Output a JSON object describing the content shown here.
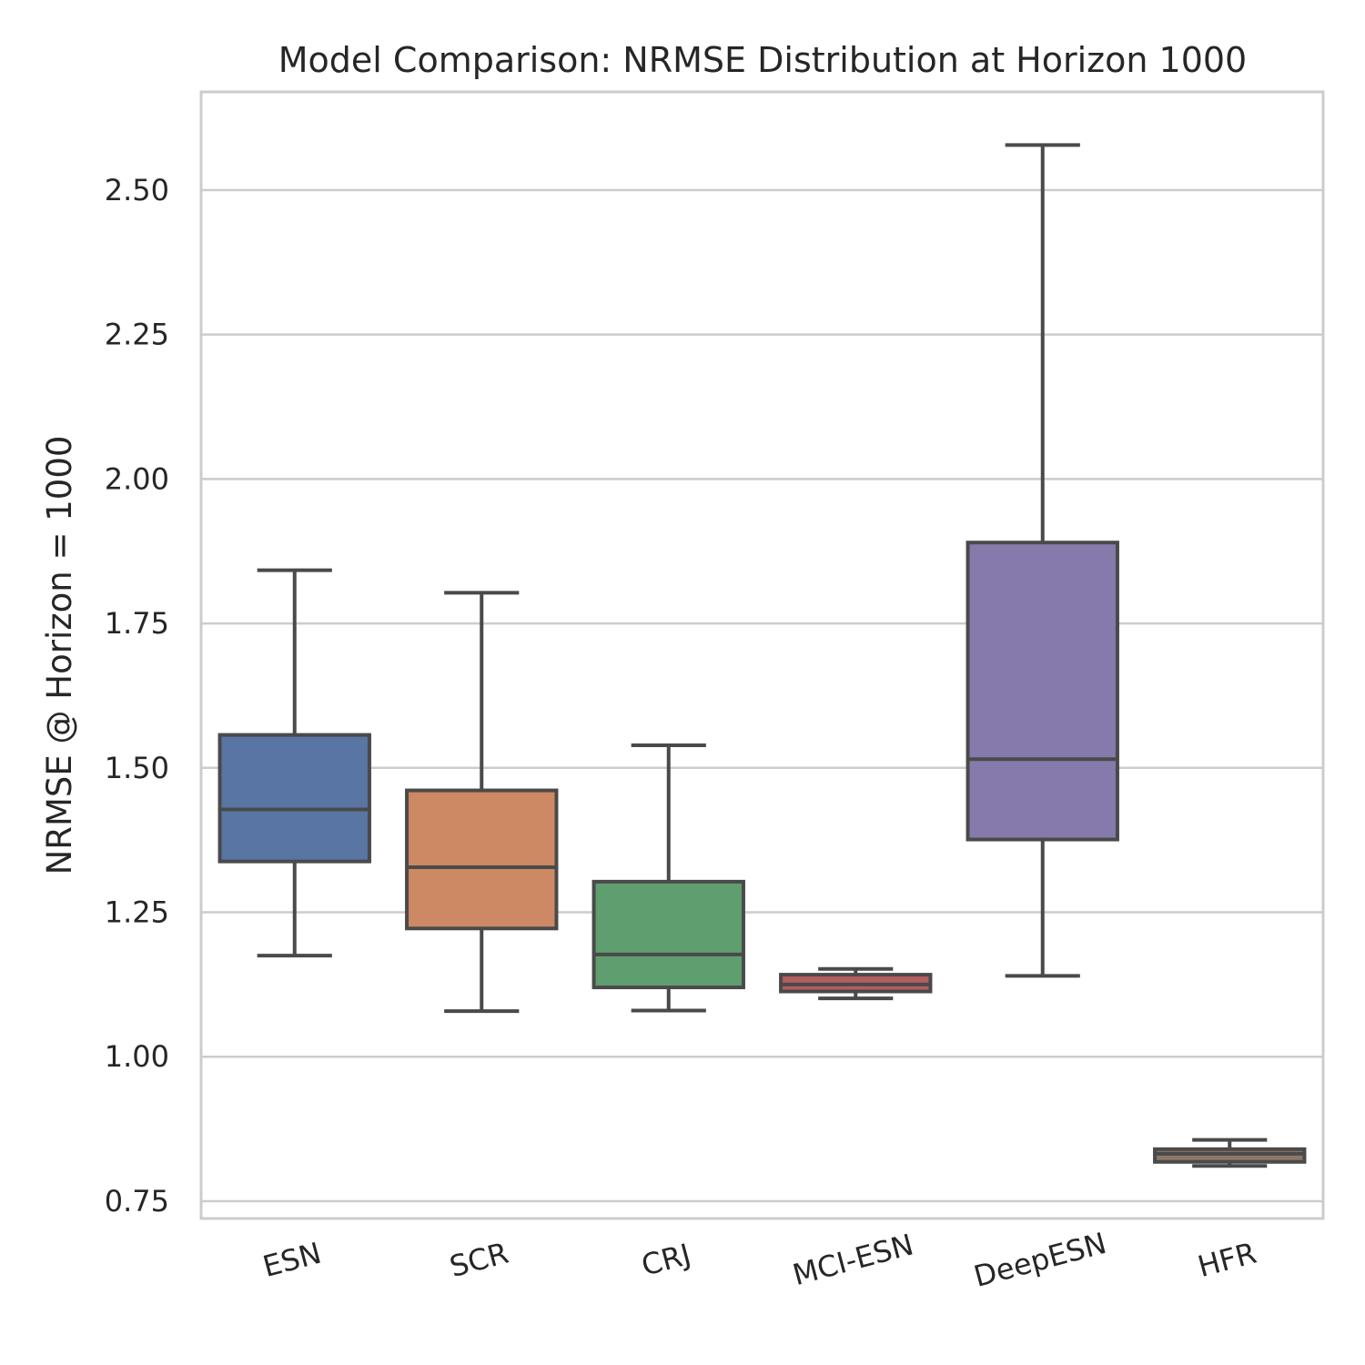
{
  "chart_data": {
    "type": "box",
    "title": "Model Comparison: NRMSE Distribution at Horizon 1000",
    "xlabel": "",
    "ylabel": "NRMSE @ Horizon = 1000",
    "ylim": [
      0.72,
      2.67
    ],
    "yticks": [
      0.75,
      1.0,
      1.25,
      1.5,
      1.75,
      2.0,
      2.25,
      2.5
    ],
    "ytick_labels": [
      "0.75",
      "1.00",
      "1.25",
      "1.50",
      "1.75",
      "2.00",
      "2.25",
      "2.50"
    ],
    "grid": true,
    "categories": [
      "ESN",
      "SCR",
      "CRJ",
      "MCI-ESN",
      "DeepESN",
      "HFR"
    ],
    "colors": [
      "#5875a4",
      "#cc8963",
      "#5f9e6e",
      "#b55d60",
      "#857aab",
      "#8d7866"
    ],
    "boxes": [
      {
        "category": "ESN",
        "whisker_low": 1.175,
        "q1": 1.338,
        "median": 1.428,
        "q3": 1.557,
        "whisker_high": 1.842
      },
      {
        "category": "SCR",
        "whisker_low": 1.079,
        "q1": 1.222,
        "median": 1.328,
        "q3": 1.461,
        "whisker_high": 1.803
      },
      {
        "category": "CRJ",
        "whisker_low": 1.08,
        "q1": 1.12,
        "median": 1.177,
        "q3": 1.303,
        "whisker_high": 1.539
      },
      {
        "category": "MCI-ESN",
        "whisker_low": 1.101,
        "q1": 1.113,
        "median": 1.125,
        "q3": 1.142,
        "whisker_high": 1.152
      },
      {
        "category": "DeepESN",
        "whisker_low": 1.14,
        "q1": 1.376,
        "median": 1.515,
        "q3": 1.89,
        "whisker_high": 2.578
      },
      {
        "category": "HFR",
        "whisker_low": 0.811,
        "q1": 0.818,
        "median": 0.832,
        "q3": 0.84,
        "whisker_high": 0.856
      }
    ]
  }
}
